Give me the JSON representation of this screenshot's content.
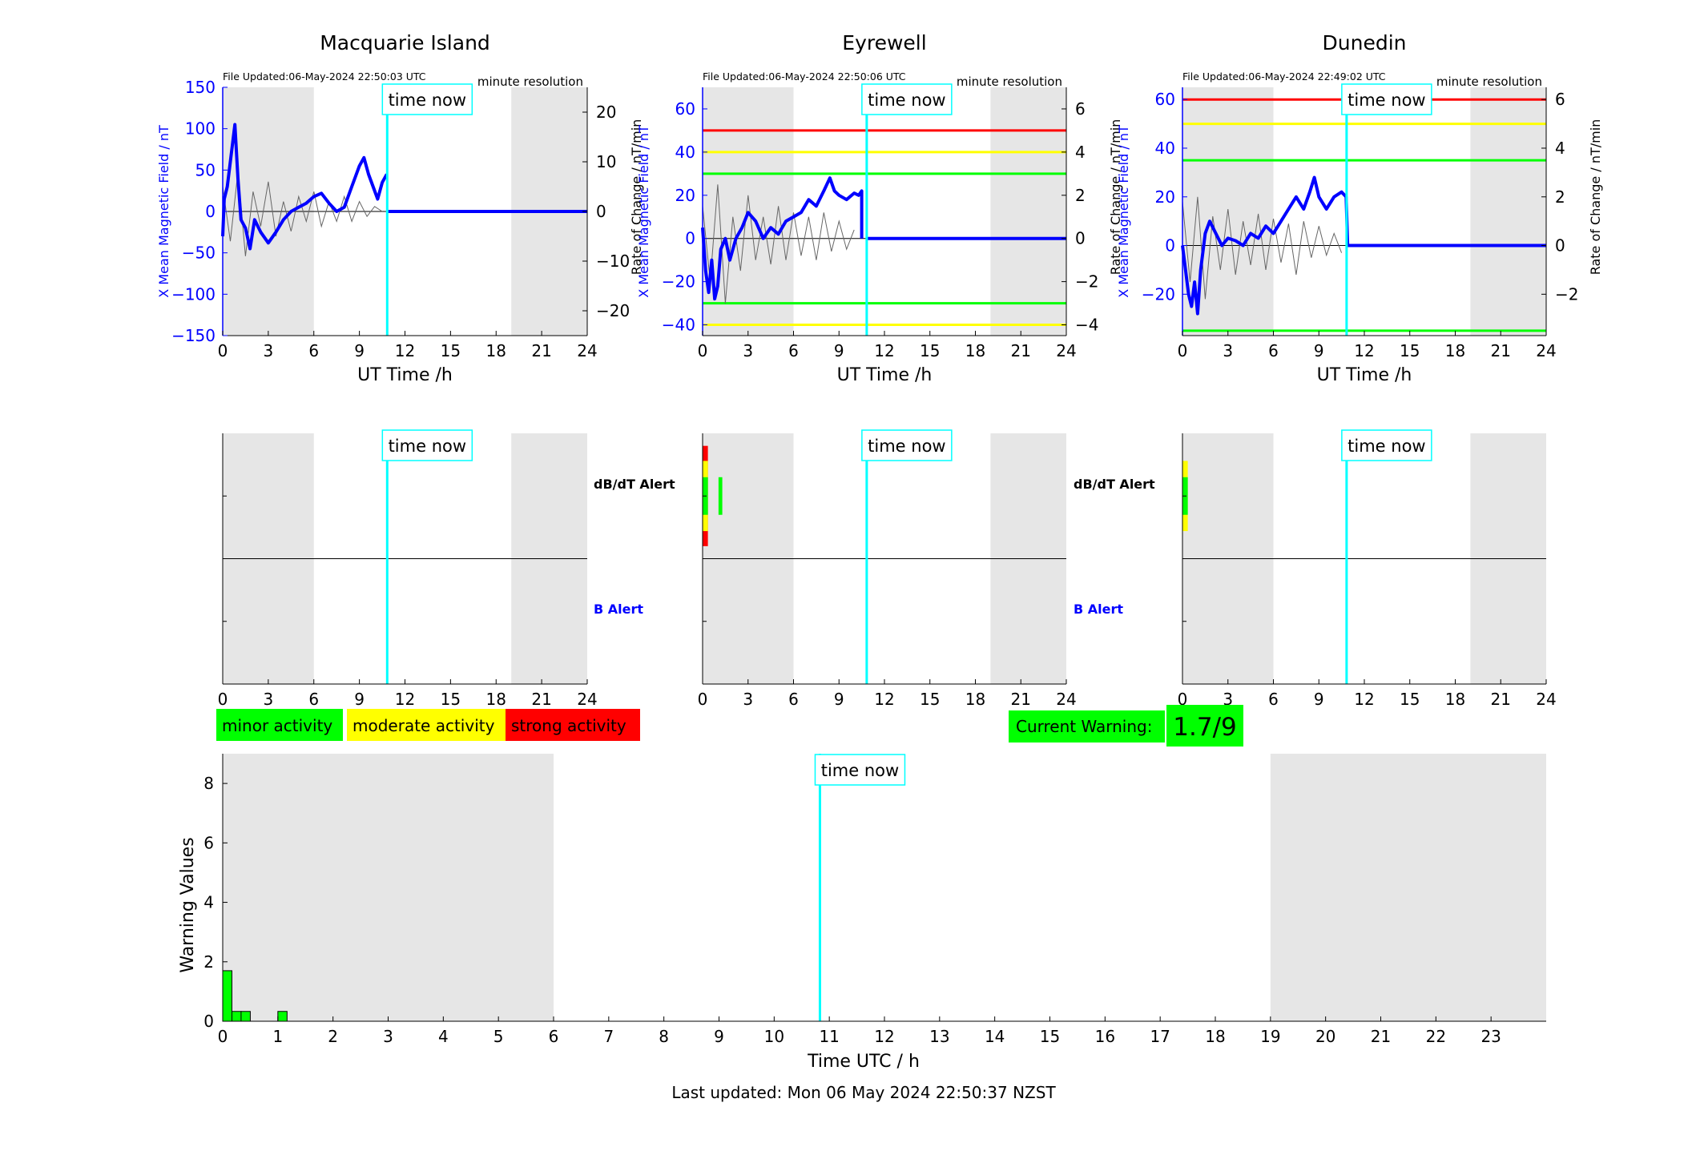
{
  "station_titles": [
    "Macquarie Island",
    "Eyrewell",
    "Dunedin"
  ],
  "file_updated": [
    "File Updated:06-May-2024 22:50:03 UTC",
    "File Updated:06-May-2024 22:50:06 UTC",
    "File Updated:06-May-2024 22:49:02 UTC"
  ],
  "resolution_label": "minute resolution",
  "time_now_label": "time now",
  "left_axis_label": "X Mean Magnetic Field / nT",
  "right_axis_label": "Rate of Change / nT/min",
  "ut_axis_label": "UT Time /h",
  "alert_labels": {
    "dbdt": "dB/dT Alert",
    "b": "B Alert"
  },
  "legend": {
    "minor": "minor activity",
    "moderate": "moderate activity",
    "strong": "strong activity"
  },
  "current_warning": {
    "label": "Current Warning:",
    "value": "1.7/9"
  },
  "bottom_chart": {
    "ylabel": "Warning Values",
    "xlabel": "Time UTC / h"
  },
  "last_updated": "Last updated: Mon 06 May 2024 22:50:37 NZST",
  "colors": {
    "field": "#0000ff",
    "roc": "#666666",
    "now": "#00ffff",
    "night": "#e6e6e6",
    "minor": "#00ff00",
    "moderate": "#ffff00",
    "strong": "#ff0000"
  },
  "chart_data": [
    {
      "type": "line",
      "title": "Macquarie Island",
      "xlabel": "UT Time /h",
      "ylabel": "X Mean Magnetic Field / nT",
      "y2label": "Rate of Change / nT/min",
      "xlim": [
        0,
        24
      ],
      "ylim": [
        -150,
        150
      ],
      "y2lim": [
        -25,
        25
      ],
      "xticks": [
        0,
        3,
        6,
        9,
        12,
        15,
        18,
        21,
        24
      ],
      "yticks": [
        -150,
        -100,
        -50,
        0,
        50,
        100,
        150
      ],
      "y2ticks": [
        -20,
        -10,
        0,
        10,
        20
      ],
      "thresholds": [],
      "time_now": 10.83,
      "night_shading": [
        [
          0,
          6
        ],
        [
          19,
          24
        ]
      ],
      "field_series": {
        "x": [
          0,
          0.1,
          0.3,
          0.5,
          0.8,
          1.0,
          1.2,
          1.5,
          1.8,
          2.1,
          2.5,
          3.0,
          3.5,
          4.0,
          4.5,
          5.0,
          5.5,
          6.0,
          6.5,
          7.0,
          7.5,
          8.0,
          8.5,
          9.0,
          9.3,
          9.6,
          9.9,
          10.2,
          10.5,
          10.8
        ],
        "y": [
          -30,
          15,
          30,
          60,
          105,
          40,
          -10,
          -20,
          -45,
          -10,
          -25,
          -38,
          -25,
          -10,
          0,
          5,
          10,
          18,
          22,
          10,
          0,
          5,
          30,
          55,
          65,
          45,
          30,
          15,
          35,
          45
        ]
      },
      "roc_series": {
        "x": [
          0,
          0.5,
          1,
          1.5,
          2,
          2.5,
          3,
          3.5,
          4,
          4.5,
          5,
          5.5,
          6,
          6.5,
          7,
          7.5,
          8,
          8.5,
          9,
          9.5,
          10,
          10.5
        ],
        "y": [
          5,
          -6,
          8,
          -9,
          4,
          -3,
          6,
          -5,
          2,
          -4,
          3,
          -2,
          4,
          -3,
          2,
          -2,
          3,
          -2,
          2,
          -1,
          1,
          0
        ]
      }
    },
    {
      "type": "line",
      "title": "Eyrewell",
      "xlabel": "UT Time /h",
      "ylabel": "X Mean Magnetic Field / nT",
      "y2label": "Rate of Change / nT/min",
      "xlim": [
        0,
        24
      ],
      "ylim": [
        -45,
        70
      ],
      "y2lim": [
        -4.5,
        7.0
      ],
      "xticks": [
        0,
        3,
        6,
        9,
        12,
        15,
        18,
        21,
        24
      ],
      "yticks": [
        -40,
        -20,
        0,
        20,
        40,
        60
      ],
      "y2ticks": [
        -4,
        -2,
        0,
        2,
        4,
        6
      ],
      "thresholds": [
        {
          "value": 50,
          "color": "#ff0000"
        },
        {
          "value": 40,
          "color": "#ffff00"
        },
        {
          "value": 30,
          "color": "#00ff00"
        },
        {
          "value": -30,
          "color": "#00ff00"
        },
        {
          "value": -40,
          "color": "#ffff00"
        }
      ],
      "time_now": 10.83,
      "night_shading": [
        [
          0,
          6
        ],
        [
          19,
          24
        ]
      ],
      "field_series": {
        "x": [
          0,
          0.2,
          0.4,
          0.6,
          0.8,
          1.0,
          1.2,
          1.5,
          1.8,
          2.2,
          2.6,
          3.0,
          3.5,
          4.0,
          4.5,
          5.0,
          5.5,
          6.0,
          6.5,
          7.0,
          7.5,
          8.0,
          8.4,
          8.7,
          9.0,
          9.5,
          10.0,
          10.3,
          10.5,
          10.5
        ],
        "y": [
          5,
          -15,
          -25,
          -10,
          -28,
          -22,
          -5,
          0,
          -10,
          0,
          5,
          12,
          8,
          0,
          5,
          2,
          8,
          10,
          12,
          18,
          15,
          22,
          28,
          22,
          20,
          18,
          21,
          20,
          22,
          0
        ]
      },
      "roc_series": {
        "x": [
          0,
          0.5,
          1,
          1.5,
          2,
          2.5,
          3,
          3.5,
          4,
          4.5,
          5,
          5.5,
          6,
          6.5,
          7,
          7.5,
          8,
          8.5,
          9,
          9.5,
          10
        ],
        "y": [
          1.5,
          -2,
          2.5,
          -3,
          1,
          -1.5,
          2,
          -1,
          1,
          -1.2,
          1.5,
          -1,
          1.2,
          -0.8,
          1,
          -1,
          1.2,
          -0.6,
          0.8,
          -0.5,
          0.4
        ]
      }
    },
    {
      "type": "line",
      "title": "Dunedin",
      "xlabel": "UT Time /h",
      "ylabel": "X Mean Magnetic Field / nT",
      "y2label": "Rate of Change / nT/min",
      "xlim": [
        0,
        24
      ],
      "ylim": [
        -37,
        65
      ],
      "y2lim": [
        -3.7,
        6.5
      ],
      "xticks": [
        0,
        3,
        6,
        9,
        12,
        15,
        18,
        21,
        24
      ],
      "yticks": [
        -20,
        0,
        20,
        40,
        60
      ],
      "y2ticks": [
        -2,
        0,
        2,
        4,
        6
      ],
      "thresholds": [
        {
          "value": 60,
          "color": "#ff0000"
        },
        {
          "value": 50,
          "color": "#ffff00"
        },
        {
          "value": 35,
          "color": "#00ff00"
        },
        {
          "value": -35,
          "color": "#00ff00"
        }
      ],
      "time_now": 10.83,
      "night_shading": [
        [
          0,
          6
        ],
        [
          19,
          24
        ]
      ],
      "field_series": {
        "x": [
          0,
          0.2,
          0.4,
          0.6,
          0.8,
          1.0,
          1.2,
          1.5,
          1.8,
          2.2,
          2.6,
          3.0,
          3.5,
          4.0,
          4.5,
          5.0,
          5.5,
          6.0,
          6.5,
          7.0,
          7.5,
          8.0,
          8.4,
          8.7,
          9.0,
          9.5,
          10.0,
          10.5,
          10.8,
          10.9
        ],
        "y": [
          0,
          -10,
          -20,
          -25,
          -15,
          -28,
          -10,
          5,
          10,
          5,
          0,
          3,
          2,
          0,
          5,
          3,
          8,
          5,
          10,
          15,
          20,
          15,
          22,
          28,
          20,
          15,
          20,
          22,
          20,
          0
        ]
      },
      "roc_series": {
        "x": [
          0,
          0.5,
          1,
          1.5,
          2,
          2.5,
          3,
          3.5,
          4,
          4.5,
          5,
          5.5,
          6,
          6.5,
          7,
          7.5,
          8,
          8.5,
          9,
          9.5,
          10,
          10.5
        ],
        "y": [
          1.8,
          -1.5,
          2,
          -2.2,
          1.2,
          -1,
          1.5,
          -1.2,
          1,
          -0.8,
          1.3,
          -1,
          1.1,
          -0.7,
          0.9,
          -1.2,
          1,
          -0.5,
          0.8,
          -0.4,
          0.5,
          -0.3
        ]
      }
    },
    {
      "type": "bar",
      "title": "",
      "xlabel": "Time UTC / h",
      "ylabel": "Warning Values",
      "xlim": [
        0,
        24
      ],
      "ylim": [
        0,
        9
      ],
      "xticks": [
        0,
        1,
        2,
        3,
        4,
        5,
        6,
        7,
        8,
        9,
        10,
        11,
        12,
        13,
        14,
        15,
        16,
        17,
        18,
        19,
        20,
        21,
        22,
        23
      ],
      "yticks": [
        0,
        2,
        4,
        6,
        8
      ],
      "time_now": 10.83,
      "night_shading": [
        [
          0,
          6
        ],
        [
          19,
          24
        ]
      ],
      "x": [
        0.0,
        0.167,
        0.333,
        1.0
      ],
      "values": [
        1.7,
        0.33,
        0.33,
        0.33
      ],
      "bar_width": 0.167,
      "bar_color": "#00ff00"
    }
  ],
  "alert_panels": [
    {
      "dbdt_marks": [],
      "b_marks": []
    },
    {
      "dbdt_marks": [
        {
          "x": 0.0,
          "w": 0.35,
          "top": 0.1,
          "bottom": 0.9,
          "color": "#ff0000"
        },
        {
          "x": 0.0,
          "w": 0.35,
          "top": 0.22,
          "bottom": 0.78,
          "color": "#ffff00"
        },
        {
          "x": 0.0,
          "w": 0.35,
          "top": 0.35,
          "bottom": 0.65,
          "color": "#00ff00"
        },
        {
          "x": 1.05,
          "w": 0.25,
          "top": 0.35,
          "bottom": 0.65,
          "color": "#00ff00"
        }
      ],
      "b_marks": []
    },
    {
      "dbdt_marks": [
        {
          "x": 0.0,
          "w": 0.35,
          "top": 0.22,
          "bottom": 0.78,
          "color": "#ffff00"
        },
        {
          "x": 0.0,
          "w": 0.35,
          "top": 0.35,
          "bottom": 0.65,
          "color": "#00ff00"
        }
      ],
      "b_marks": []
    }
  ]
}
